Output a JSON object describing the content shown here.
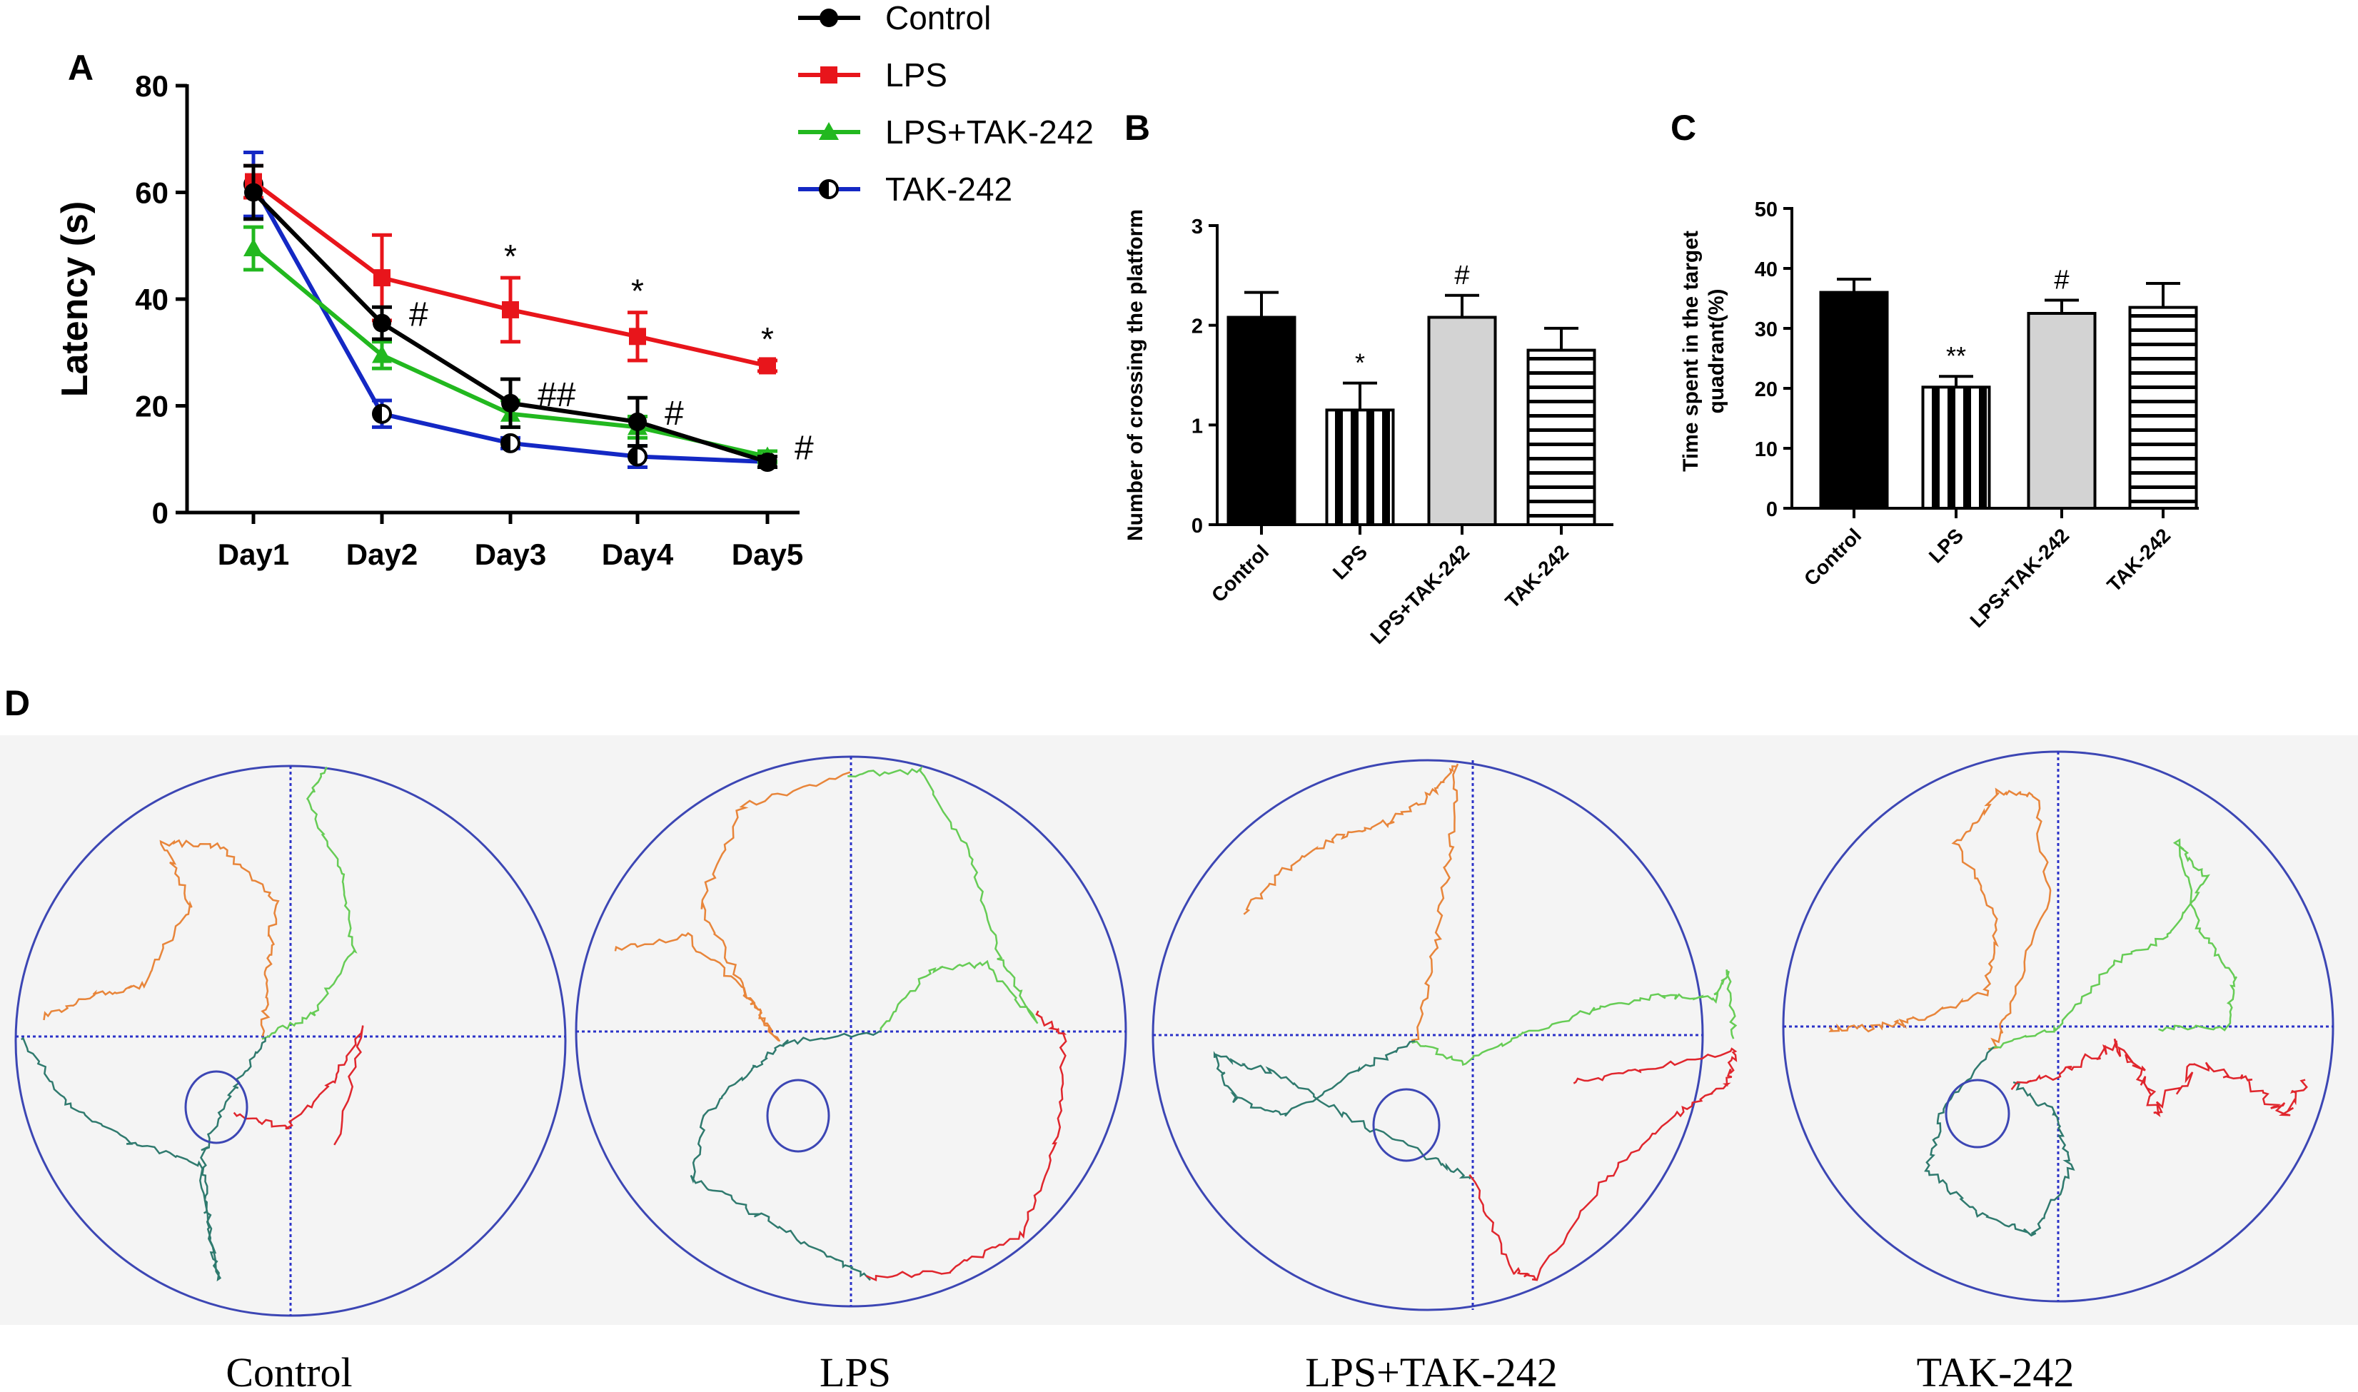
{
  "panel_labels": [
    "A",
    "B",
    "C",
    "D"
  ],
  "colors": {
    "Control": "#000000",
    "LPS": "#e8151b",
    "LPS+TAK-242": "#22b81f",
    "TAK-242": "#1428c4",
    "track_orange": "#e8853a",
    "track_green": "#66cc55",
    "track_teal": "#2f7a6e",
    "track_red": "#e0262d",
    "pool_line": "#3c46b4",
    "pool_bg": "#f4f4f4"
  },
  "chart_data": [
    {
      "id": "A",
      "type": "line",
      "title": "",
      "xlabel": "",
      "ylabel": "Latency (s)",
      "categories": [
        "Day1",
        "Day2",
        "Day3",
        "Day4",
        "Day5"
      ],
      "ylim": [
        0,
        80
      ],
      "yticks": [
        0,
        20,
        40,
        60,
        80
      ],
      "series": [
        {
          "name": "Control",
          "marker": "circle",
          "values": [
            60,
            35.5,
            20.5,
            17,
            9.5
          ],
          "errors": [
            5,
            3,
            4.5,
            4.5,
            1
          ]
        },
        {
          "name": "LPS",
          "marker": "square",
          "values": [
            62,
            44,
            38,
            33,
            27.5
          ],
          "errors": [
            3,
            8,
            6,
            4.5,
            1
          ]
        },
        {
          "name": "LPS+TAK-242",
          "marker": "triangle",
          "values": [
            49.5,
            29.5,
            18.5,
            16,
            10.5
          ],
          "errors": [
            4,
            2.5,
            2.5,
            2,
            1
          ]
        },
        {
          "name": "TAK-242",
          "marker": "half-circle",
          "values": [
            61.5,
            18.5,
            13,
            10.5,
            9.5
          ],
          "errors": [
            6,
            2.5,
            1,
            2,
            1
          ]
        }
      ],
      "legend": [
        "Control",
        "LPS",
        "LPS+TAK-242",
        "TAK-242"
      ],
      "annotations": [
        {
          "x": "Day2",
          "text": "#",
          "series": "Control"
        },
        {
          "x": "Day3",
          "text": "*",
          "series": "LPS"
        },
        {
          "x": "Day3",
          "text": "##",
          "series": "Control"
        },
        {
          "x": "Day4",
          "text": "*",
          "series": "LPS"
        },
        {
          "x": "Day4",
          "text": "#",
          "series": "Control"
        },
        {
          "x": "Day5",
          "text": "*",
          "series": "LPS"
        },
        {
          "x": "Day5",
          "text": "#",
          "series": "LPS+TAK-242"
        }
      ]
    },
    {
      "id": "B",
      "type": "bar",
      "title": "",
      "xlabel": "",
      "ylabel": "Number of crossing the platform",
      "categories": [
        "Control",
        "LPS",
        "LPS+TAK-242",
        "TAK-242"
      ],
      "values": [
        2.08,
        1.15,
        2.08,
        1.75
      ],
      "errors": [
        0.25,
        0.27,
        0.22,
        0.22
      ],
      "patterns": [
        "solid-black",
        "vertical-stripes",
        "solid-gray",
        "horizontal-stripes"
      ],
      "ylim": [
        0,
        3
      ],
      "yticks": [
        0,
        1,
        2,
        3
      ],
      "annotations": [
        "",
        "*",
        "#",
        ""
      ]
    },
    {
      "id": "C",
      "type": "bar",
      "title": "",
      "xlabel": "",
      "ylabel": "Time spent in the target quadrant(%)",
      "ylabel_lines": [
        "Time spent in the target",
        "quadrant(%)"
      ],
      "categories": [
        "Control",
        "LPS",
        "LPS+TAK-242",
        "TAK-242"
      ],
      "values": [
        36,
        20.2,
        32.5,
        33.5
      ],
      "errors": [
        2.2,
        1.8,
        2.2,
        4
      ],
      "patterns": [
        "solid-black",
        "vertical-stripes",
        "solid-gray",
        "horizontal-stripes"
      ],
      "ylim": [
        0,
        50
      ],
      "yticks": [
        0,
        10,
        20,
        30,
        40,
        50
      ],
      "annotations": [
        "",
        "**",
        "#",
        ""
      ]
    }
  ],
  "panel_d": {
    "labels": [
      "Control",
      "LPS",
      "LPS+TAK-242",
      "TAK-242"
    ]
  }
}
